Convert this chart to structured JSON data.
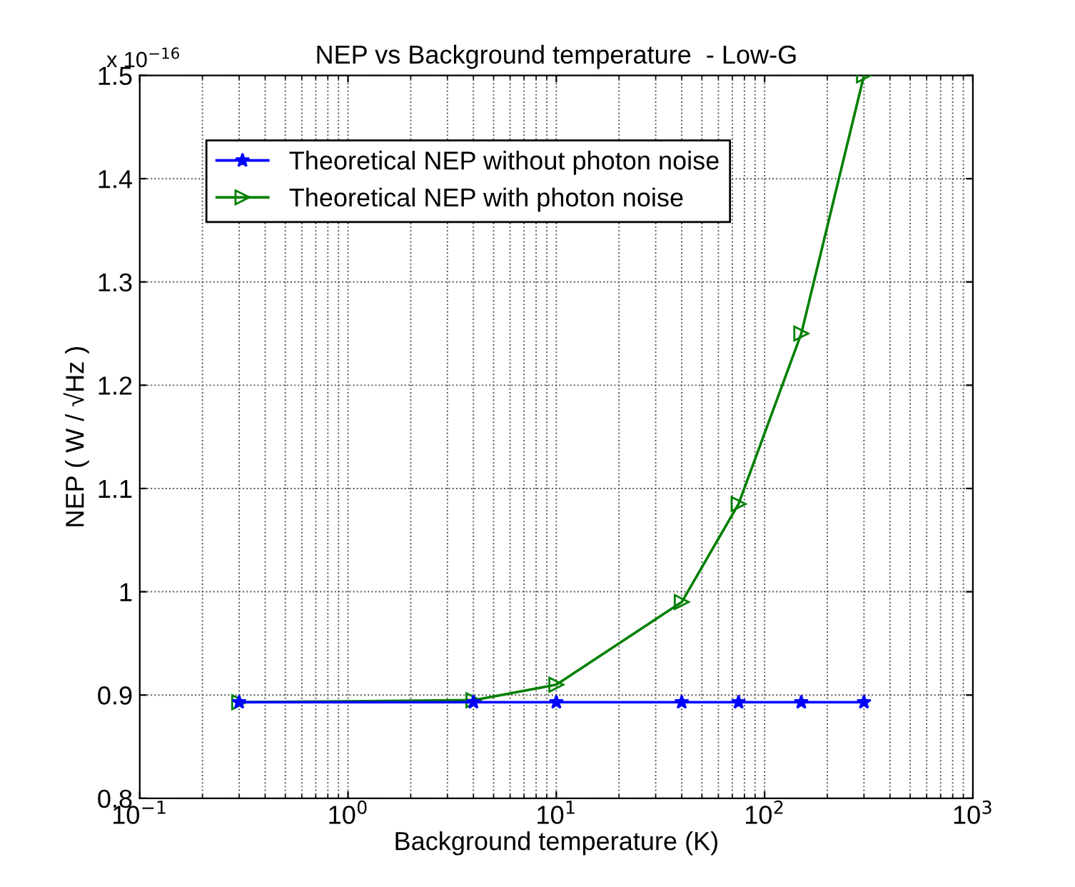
{
  "chart_data": {
    "type": "line",
    "title": "NEP vs Background temperature  - Low-G",
    "xlabel": "Background temperature (K)",
    "ylabel": "NEP ( W / √Hz )",
    "x": [
      0.3,
      4,
      10,
      40,
      75,
      150,
      300
    ],
    "series": [
      {
        "name": "Theoretical NEP without photon noise",
        "color": "#0000ff",
        "marker": "star",
        "values": [
          0.893,
          0.893,
          0.893,
          0.893,
          0.893,
          0.893,
          0.893
        ]
      },
      {
        "name": "Theoretical NEP with photon noise",
        "color": "#008000",
        "marker": "triangle",
        "values": [
          0.893,
          0.895,
          0.91,
          0.99,
          1.085,
          1.25,
          1.5
        ]
      }
    ],
    "log": "x",
    "xlim": [
      0.1,
      1000
    ],
    "xticks": [
      {
        "value": 0.1,
        "label": "10$^{−1}$"
      },
      {
        "value": 1,
        "label": "10$^{0}$"
      },
      {
        "value": 10,
        "label": "10$^{1}$"
      },
      {
        "value": 100,
        "label": "10$^{2}$"
      },
      {
        "value": 1000,
        "label": "10$^{3}$"
      }
    ],
    "ylim": [
      0.8,
      1.5
    ],
    "yticks": [
      0.8,
      0.9,
      1,
      1.1,
      1.2,
      1.3,
      1.4,
      1.5
    ],
    "annotations": [
      "x 10$^{−16}$"
    ],
    "grid": true,
    "legend": "top left",
    "line_style": "solid"
  }
}
